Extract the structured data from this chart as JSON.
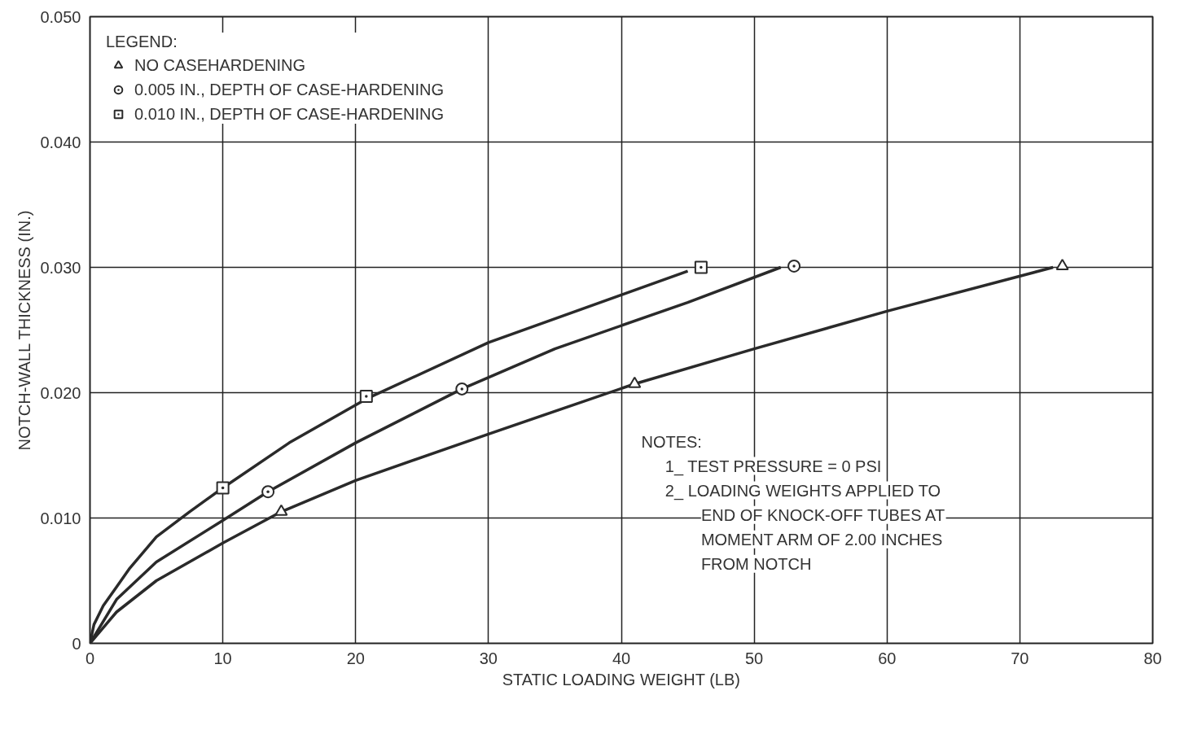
{
  "chart_data": {
    "type": "line",
    "xlabel": "STATIC LOADING WEIGHT (LB)",
    "ylabel": "NOTCH-WALL THICKNESS (IN.)",
    "legend_title": "LEGEND:",
    "legend": "top left",
    "grid": true,
    "xlim": [
      0,
      80
    ],
    "ylim": [
      0,
      0.05
    ],
    "xticks": [
      0,
      10,
      20,
      30,
      40,
      50,
      60,
      70,
      80
    ],
    "yticks": [
      0,
      {
        "value": 0.01,
        "label": "0.010"
      },
      {
        "value": 0.02,
        "label": "0.020"
      },
      {
        "value": 0.03,
        "label": "0.030"
      },
      {
        "value": 0.04,
        "label": "0.040"
      },
      {
        "value": 0.05,
        "label": "0.050"
      }
    ],
    "series": [
      {
        "color": "#2a2a2a",
        "x": [
          0,
          0.3,
          1,
          2,
          3,
          5,
          7.5,
          10,
          15,
          20.8,
          30,
          40,
          45
        ],
        "values": [
          0,
          0.0015,
          0.003,
          0.0045,
          0.006,
          0.0085,
          0.0105,
          0.0124,
          0.016,
          0.0195,
          0.024,
          0.0278,
          0.0297
        ]
      },
      {
        "color": "#2a2a2a",
        "x": [
          0,
          2,
          5,
          10,
          13.4,
          20,
          28,
          35,
          45,
          52
        ],
        "values": [
          0,
          0.0035,
          0.0065,
          0.0098,
          0.0121,
          0.016,
          0.0203,
          0.0235,
          0.0272,
          0.03
        ]
      },
      {
        "color": "#2a2a2a",
        "x": [
          0,
          2,
          5,
          10,
          14.4,
          20,
          30,
          41,
          50,
          60,
          72.5
        ],
        "values": [
          0,
          0.0025,
          0.005,
          0.008,
          0.0105,
          0.013,
          0.0167,
          0.0207,
          0.0235,
          0.0265,
          0.03
        ]
      },
      {
        "type": "scatter",
        "name": "NO CASEHARDENING",
        "marker": "triangle",
        "color": "#2a2a2a",
        "x": [
          14.4,
          41.0,
          73.2
        ],
        "values": [
          0.0105,
          0.0207,
          0.0301
        ]
      },
      {
        "type": "scatter",
        "name": "0.005 IN., DEPTH OF CASE-HARDENING",
        "marker": "circle",
        "color": "#2a2a2a",
        "x": [
          13.4,
          28.0,
          53.0
        ],
        "values": [
          0.0121,
          0.0203,
          0.0301
        ]
      },
      {
        "type": "scatter",
        "name": "0.010 IN., DEPTH OF CASE-HARDENING",
        "marker": "square",
        "color": "#2a2a2a",
        "x": [
          10.0,
          20.8,
          46.0
        ],
        "values": [
          0.0124,
          0.0197,
          0.03
        ]
      }
    ],
    "annotations": [
      "NOTES:",
      "1_ TEST PRESSURE = 0 PSI",
      "2_ LOADING WEIGHTS APPLIED TO",
      "END OF KNOCK-OFF TUBES AT",
      "MOMENT ARM OF 2.00 INCHES",
      "FROM NOTCH"
    ]
  }
}
